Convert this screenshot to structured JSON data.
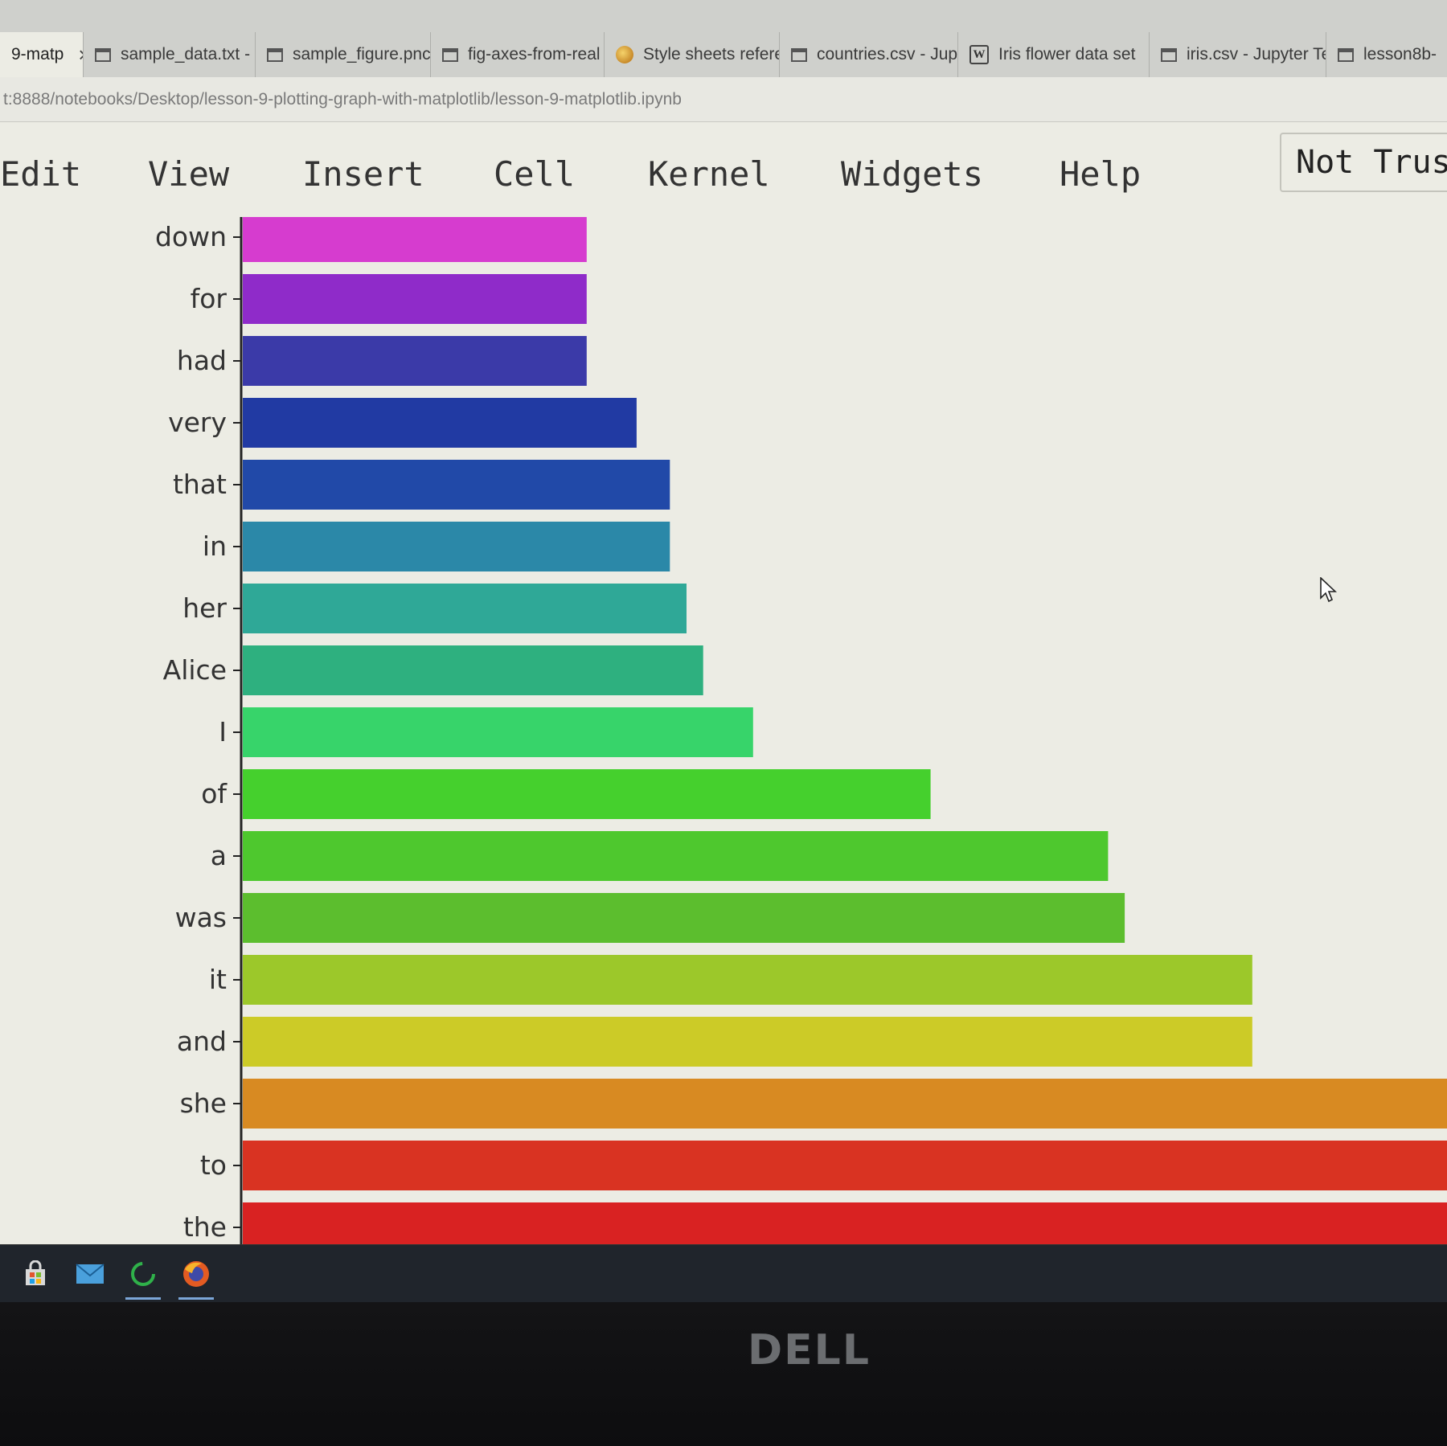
{
  "browser": {
    "tabs": [
      {
        "label": "9-matp",
        "icon": "notebook-icon",
        "active": true,
        "closable": true
      },
      {
        "label": "sample_data.txt -",
        "icon": "page-icon"
      },
      {
        "label": "sample_figure.pnc",
        "icon": "page-icon"
      },
      {
        "label": "fig-axes-from-real",
        "icon": "page-icon"
      },
      {
        "label": "Style sheets refere",
        "icon": "matplotlib-icon"
      },
      {
        "label": "countries.csv - Jup",
        "icon": "page-icon"
      },
      {
        "label": "Iris flower data set",
        "icon": "wikipedia-icon",
        "icon_text": "W"
      },
      {
        "label": "iris.csv - Jupyter Te",
        "icon": "page-icon"
      },
      {
        "label": "lesson8b-",
        "icon": "page-icon"
      }
    ],
    "tab_close_glyph": "×",
    "address": "t:8888/notebooks/Desktop/lesson-9-plotting-graph-with-matplotlib/lesson-9-matplotlib.ipynb"
  },
  "jupyter": {
    "menu": [
      "Edit",
      "View",
      "Insert",
      "Cell",
      "Kernel",
      "Widgets",
      "Help"
    ],
    "trust_badge": "Not Trust"
  },
  "chart_data": {
    "type": "bar",
    "orientation": "horizontal",
    "categories": [
      "down",
      "for",
      "had",
      "very",
      "that",
      "in",
      "her",
      "Alice",
      "I",
      "of",
      "a",
      "was",
      "it",
      "and",
      "she",
      "to",
      "the"
    ],
    "values": [
      62,
      62,
      62,
      71,
      77,
      77,
      80,
      83,
      92,
      124,
      156,
      159,
      182,
      182,
      221,
      221,
      232
    ],
    "colors": [
      "#d63ccf",
      "#8f2bc9",
      "#3b3aa8",
      "#213aa3",
      "#2149a8",
      "#2b88a8",
      "#2fa897",
      "#2eb07f",
      "#37d46a",
      "#45d02d",
      "#4ec82e",
      "#5cbe2e",
      "#9cc82a",
      "#cccb27",
      "#d88a22",
      "#d93322",
      "#d92222"
    ],
    "title": "",
    "xlabel": "",
    "ylabel": "",
    "grid": false
  },
  "taskbar": {
    "icons": [
      "store-icon",
      "mail-icon",
      "jupyter-icon",
      "firefox-icon"
    ]
  },
  "monitor": {
    "brand": "DELL"
  }
}
